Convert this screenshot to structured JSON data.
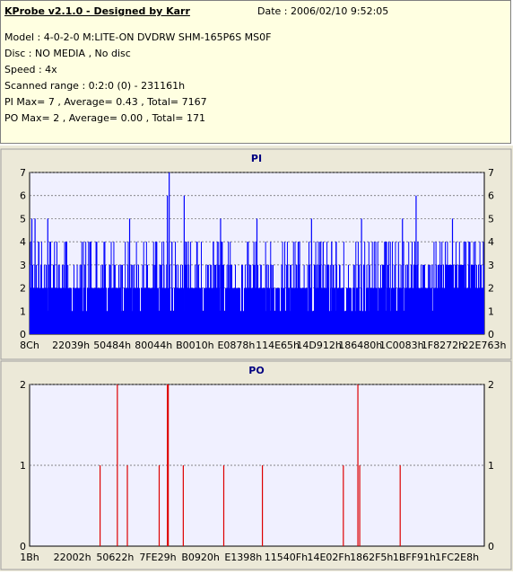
{
  "header": {
    "title": "KProbe v2.1.0 - Designed by Karr",
    "date": "Date : 2006/02/10 9:52:05",
    "lines": [
      "Model : 4-0-2-0 M:LITE-ON DVDRW SHM-165P6S MS0F",
      "Disc : NO MEDIA , No disc",
      "Speed : 4x",
      "Scanned range : 0:2:0 (0) - 231161h",
      "PI Max= 7 , Average= 0.43 , Total= 7167",
      "PO Max= 2 , Average= 0.00 , Total= 171"
    ]
  },
  "colors": {
    "panel_bg": "#ece9d8",
    "info_bg": "#ffffe1",
    "plot_bg": "#f0f0ff",
    "pi_color": "#0000ff",
    "po_color": "#dd0000",
    "title_color": "#000080"
  },
  "chart_data": [
    {
      "type": "bar",
      "title": "PI",
      "ylim": [
        0,
        7
      ],
      "yticks": [
        0,
        1,
        2,
        3,
        4,
        5,
        6,
        7
      ],
      "xticks": [
        "8Ch",
        "22039h",
        "50484h",
        "80044h",
        "B0010h",
        "E0878h",
        "114E65h",
        "14D912h",
        "186480h",
        "1C0083h",
        "1F8272h",
        "22E763h"
      ],
      "grid": true,
      "note_values": "Dense per-sector PI error counts across the scanned range; mostly 1-3, frequent spikes to 4-5, max 7 near B0010h.",
      "spikes": [
        {
          "pos": 0.005,
          "value": 5
        },
        {
          "pos": 0.012,
          "value": 5
        },
        {
          "pos": 0.04,
          "value": 5
        },
        {
          "pos": 0.08,
          "value": 4
        },
        {
          "pos": 0.13,
          "value": 4
        },
        {
          "pos": 0.22,
          "value": 5
        },
        {
          "pos": 0.303,
          "value": 6
        },
        {
          "pos": 0.307,
          "value": 7
        },
        {
          "pos": 0.34,
          "value": 6
        },
        {
          "pos": 0.42,
          "value": 5
        },
        {
          "pos": 0.5,
          "value": 5
        },
        {
          "pos": 0.62,
          "value": 5
        },
        {
          "pos": 0.73,
          "value": 5
        },
        {
          "pos": 0.82,
          "value": 5
        },
        {
          "pos": 0.85,
          "value": 6
        },
        {
          "pos": 0.93,
          "value": 5
        },
        {
          "pos": 0.98,
          "value": 4
        }
      ],
      "baseline_levels": {
        "low": 1,
        "mid": 2,
        "high": 3
      }
    },
    {
      "type": "bar",
      "title": "PO",
      "ylim": [
        0,
        2
      ],
      "yticks": [
        0,
        1,
        2
      ],
      "xticks": [
        "1Bh",
        "22002h",
        "50622h",
        "7FE29h",
        "B0920h",
        "E1398h",
        "11540Fh",
        "14E02Fh",
        "1862F5h",
        "1BFF91h",
        "1FC2E8h"
      ],
      "grid": true,
      "spikes": [
        {
          "pos": 0.155,
          "value": 1
        },
        {
          "pos": 0.193,
          "value": 2
        },
        {
          "pos": 0.215,
          "value": 1
        },
        {
          "pos": 0.285,
          "value": 1
        },
        {
          "pos": 0.303,
          "value": 2
        },
        {
          "pos": 0.305,
          "value": 2
        },
        {
          "pos": 0.338,
          "value": 1
        },
        {
          "pos": 0.427,
          "value": 1
        },
        {
          "pos": 0.512,
          "value": 1
        },
        {
          "pos": 0.69,
          "value": 1
        },
        {
          "pos": 0.722,
          "value": 2
        },
        {
          "pos": 0.726,
          "value": 1
        },
        {
          "pos": 0.815,
          "value": 1
        }
      ]
    }
  ]
}
